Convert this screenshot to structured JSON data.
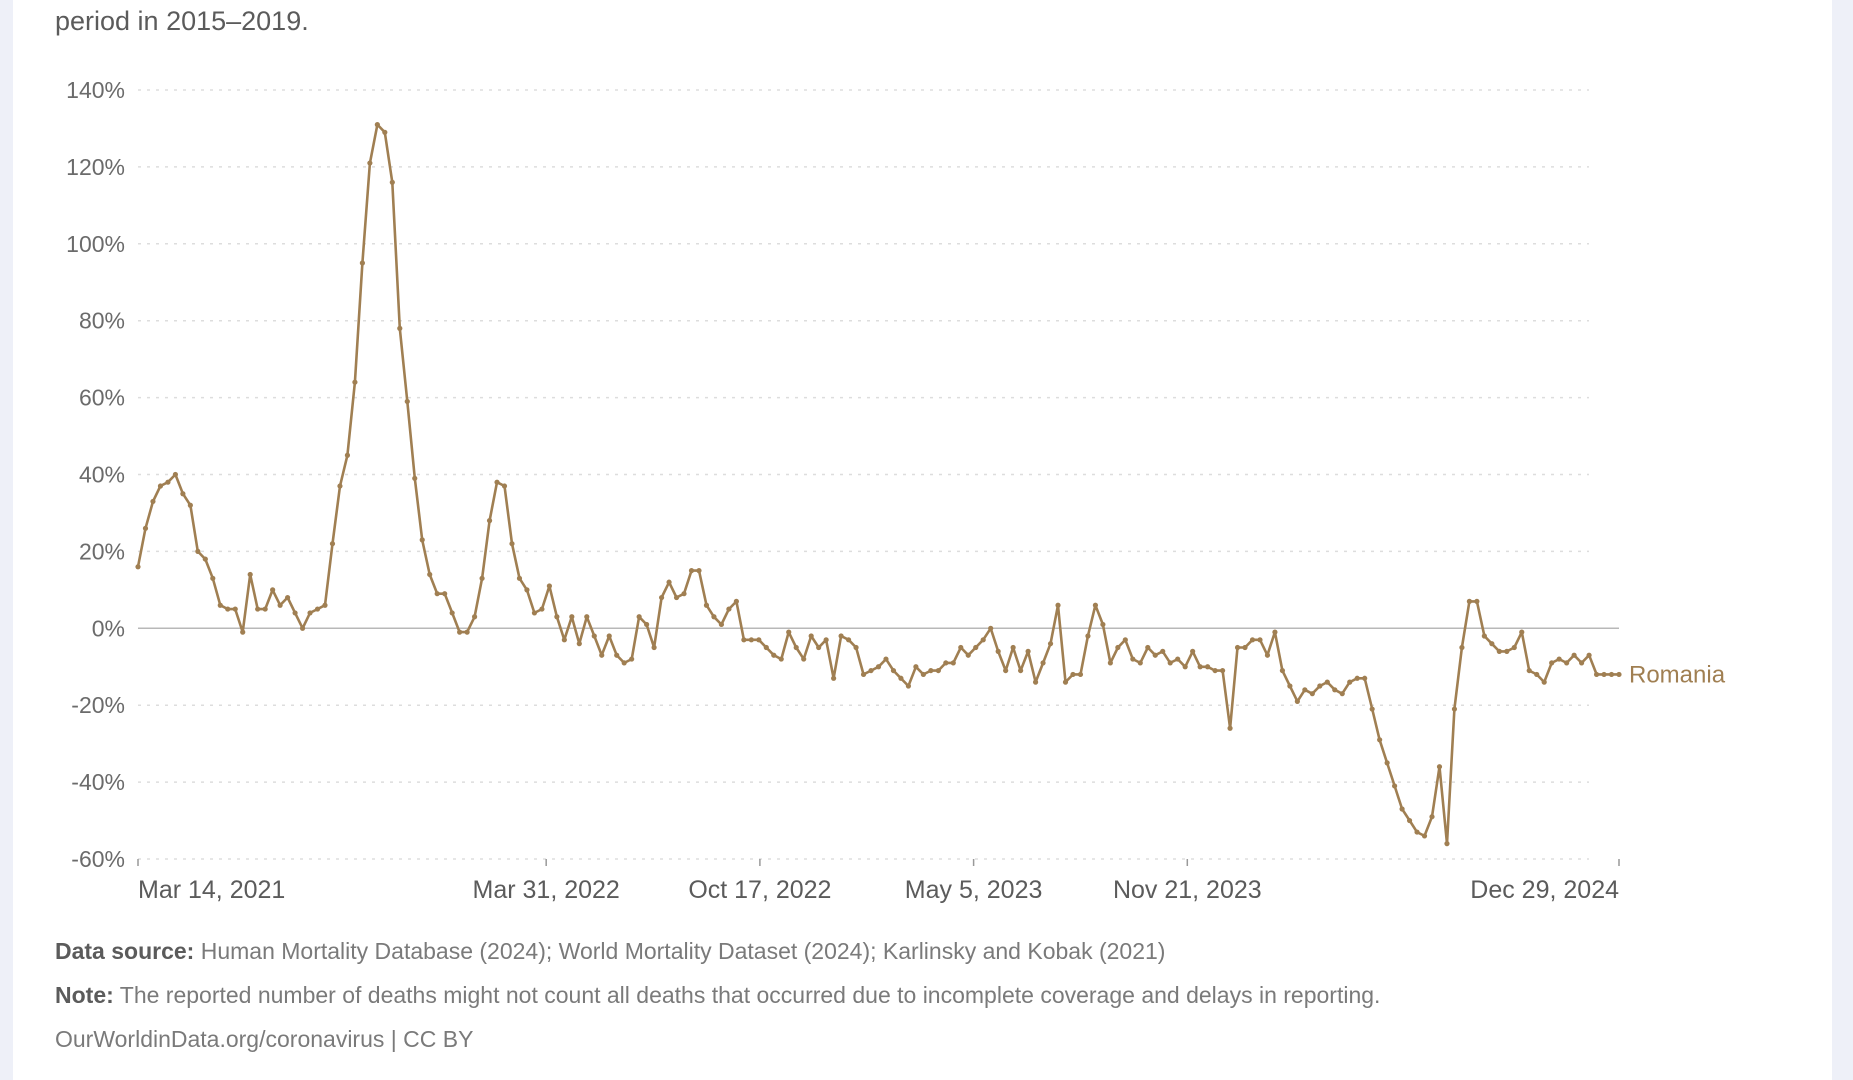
{
  "subtitle": "period in 2015–2019.",
  "footer": {
    "data_source_label": "Data source:",
    "data_source": "Human Mortality Database (2024); World Mortality Dataset (2024); Karlinsky and Kobak (2021)",
    "note_label": "Note:",
    "note": "The reported number of deaths might not count all deaths that occurred due to incomplete coverage and delays in reporting.",
    "credit": "OurWorldinData.org/coronavirus",
    "license": " | CC BY"
  },
  "colors": {
    "series": "#a07f52",
    "zero_line": "#b8b8b8",
    "grid": "#dddddd",
    "text": "#6b6b6b"
  },
  "chart_data": {
    "type": "line",
    "ylim": [
      -60,
      140
    ],
    "yticks": [
      -60,
      -40,
      -20,
      0,
      20,
      40,
      60,
      80,
      100,
      120,
      140
    ],
    "ytick_labels": [
      "-60%",
      "-40%",
      "-20%",
      "0%",
      "20%",
      "40%",
      "60%",
      "80%",
      "100%",
      "120%",
      "140%"
    ],
    "xlim": [
      "2021-03-14",
      "2024-12-29"
    ],
    "xticks": [
      "2021-03-14",
      "2022-03-31",
      "2022-10-17",
      "2023-05-05",
      "2023-11-21",
      "2024-12-29"
    ],
    "xtick_labels": [
      "Mar 14, 2021",
      "Mar 31, 2022",
      "Oct 17, 2022",
      "May 5, 2023",
      "Nov 21, 2023",
      "Dec 29, 2024"
    ],
    "grid": "horizontal dotted",
    "markers": true,
    "series": [
      {
        "name": "Romania",
        "x": [
          "2021-03-14",
          "2021-03-21",
          "2021-03-28",
          "2021-04-04",
          "2021-04-11",
          "2021-04-18",
          "2021-04-25",
          "2021-05-02",
          "2021-05-09",
          "2021-05-16",
          "2021-05-23",
          "2021-05-30",
          "2021-06-06",
          "2021-06-13",
          "2021-06-20",
          "2021-06-27",
          "2021-07-04",
          "2021-07-11",
          "2021-07-18",
          "2021-07-25",
          "2021-08-01",
          "2021-08-08",
          "2021-08-15",
          "2021-08-22",
          "2021-08-29",
          "2021-09-05",
          "2021-09-12",
          "2021-09-19",
          "2021-09-26",
          "2021-10-03",
          "2021-10-10",
          "2021-10-17",
          "2021-10-24",
          "2021-10-31",
          "2021-11-07",
          "2021-11-14",
          "2021-11-21",
          "2021-11-28",
          "2021-12-05",
          "2021-12-12",
          "2021-12-19",
          "2021-12-26",
          "2022-01-02",
          "2022-01-09",
          "2022-01-16",
          "2022-01-23",
          "2022-01-30",
          "2022-02-06",
          "2022-02-13",
          "2022-02-20",
          "2022-02-27",
          "2022-03-06",
          "2022-03-13",
          "2022-03-20",
          "2022-03-27",
          "2022-04-03",
          "2022-04-10",
          "2022-04-17",
          "2022-04-24",
          "2022-05-01",
          "2022-05-08",
          "2022-05-15",
          "2022-05-22",
          "2022-05-29",
          "2022-06-05",
          "2022-06-12",
          "2022-06-19",
          "2022-06-26",
          "2022-07-03",
          "2022-07-10",
          "2022-07-17",
          "2022-07-24",
          "2022-07-31",
          "2022-08-07",
          "2022-08-14",
          "2022-08-21",
          "2022-08-28",
          "2022-09-04",
          "2022-09-11",
          "2022-09-18",
          "2022-09-25",
          "2022-10-02",
          "2022-10-09",
          "2022-10-16",
          "2022-10-23",
          "2022-10-30",
          "2022-11-06",
          "2022-11-13",
          "2022-11-20",
          "2022-11-27",
          "2022-12-04",
          "2022-12-11",
          "2022-12-18",
          "2022-12-25",
          "2023-01-01",
          "2023-01-08",
          "2023-01-15",
          "2023-01-22",
          "2023-01-29",
          "2023-02-05",
          "2023-02-12",
          "2023-02-19",
          "2023-02-26",
          "2023-03-05",
          "2023-03-12",
          "2023-03-19",
          "2023-03-26",
          "2023-04-02",
          "2023-04-09",
          "2023-04-16",
          "2023-04-23",
          "2023-04-30",
          "2023-05-07",
          "2023-05-14",
          "2023-05-21",
          "2023-05-28",
          "2023-06-04",
          "2023-06-11",
          "2023-06-18",
          "2023-06-25",
          "2023-07-02",
          "2023-07-09",
          "2023-07-16",
          "2023-07-23",
          "2023-07-30",
          "2023-08-06",
          "2023-08-13",
          "2023-08-20",
          "2023-08-27",
          "2023-09-03",
          "2023-09-10",
          "2023-09-17",
          "2023-09-24",
          "2023-10-01",
          "2023-10-08",
          "2023-10-15",
          "2023-10-22",
          "2023-10-29",
          "2023-11-05",
          "2023-11-12",
          "2023-11-19",
          "2023-11-26",
          "2023-12-03",
          "2023-12-10",
          "2023-12-17",
          "2023-12-24",
          "2023-12-31",
          "2024-01-07",
          "2024-01-14",
          "2024-01-21",
          "2024-01-28",
          "2024-02-04",
          "2024-02-11",
          "2024-02-18",
          "2024-02-25",
          "2024-03-03",
          "2024-03-10",
          "2024-03-17",
          "2024-03-24",
          "2024-03-31",
          "2024-04-07",
          "2024-04-14",
          "2024-04-21",
          "2024-04-28",
          "2024-05-05",
          "2024-05-12",
          "2024-05-19",
          "2024-05-26",
          "2024-06-02",
          "2024-06-09",
          "2024-06-16",
          "2024-06-23",
          "2024-06-30",
          "2024-07-07",
          "2024-07-14",
          "2024-07-21",
          "2024-07-28",
          "2024-08-04",
          "2024-08-11",
          "2024-08-18",
          "2024-08-25",
          "2024-09-01",
          "2024-09-08",
          "2024-09-15",
          "2024-09-22",
          "2024-09-29",
          "2024-10-06",
          "2024-10-13",
          "2024-10-20",
          "2024-10-27",
          "2024-11-03",
          "2024-11-10",
          "2024-11-17",
          "2024-11-24",
          "2024-12-01",
          "2024-12-08",
          "2024-12-15",
          "2024-12-22",
          "2024-12-29"
        ],
        "values": [
          16,
          26,
          33,
          37,
          38,
          40,
          35,
          32,
          20,
          18,
          13,
          6,
          5,
          5,
          -1,
          14,
          5,
          5,
          10,
          6,
          8,
          4,
          0,
          4,
          5,
          6,
          22,
          37,
          45,
          64,
          95,
          121,
          131,
          129,
          116,
          78,
          59,
          39,
          23,
          14,
          9,
          9,
          4,
          -1,
          -1,
          3,
          13,
          28,
          38,
          37,
          22,
          13,
          10,
          4,
          5,
          11,
          3,
          -3,
          3,
          -4,
          3,
          -2,
          -7,
          -2,
          -7,
          -9,
          -8,
          3,
          1,
          -5,
          8,
          12,
          8,
          9,
          15,
          15,
          6,
          3,
          1,
          5,
          7,
          -3,
          -3,
          -3,
          -5,
          -7,
          -8,
          -1,
          -5,
          -8,
          -2,
          -5,
          -3,
          -13,
          -2,
          -3,
          -5,
          -12,
          -11,
          -10,
          -8,
          -11,
          -13,
          -15,
          -10,
          -12,
          -11,
          -11,
          -9,
          -9,
          -5,
          -7,
          -5,
          -3,
          0,
          -6,
          -11,
          -5,
          -11,
          -6,
          -14,
          -9,
          -4,
          6,
          -14,
          -12,
          -12,
          -2,
          6,
          1,
          -9,
          -5,
          -3,
          -8,
          -9,
          -5,
          -7,
          -6,
          -9,
          -8,
          -10,
          -6,
          -10,
          -10,
          -11,
          -11,
          -26,
          -5,
          -5,
          -3,
          -3,
          -7,
          -1,
          -11,
          -15,
          -19,
          -16,
          -17,
          -15,
          -14,
          -16,
          -17,
          -14,
          -13,
          -13,
          -21,
          -29,
          -35,
          -41,
          -47,
          -50,
          -53,
          -54,
          -49,
          -36,
          -56,
          -21,
          -5,
          7,
          7,
          -2,
          -4,
          -6,
          -6,
          -5,
          -1,
          -11,
          -12,
          -14,
          -9,
          -8,
          -9,
          -7,
          -9,
          -7,
          -12,
          -12,
          -12,
          -12
        ]
      }
    ]
  }
}
